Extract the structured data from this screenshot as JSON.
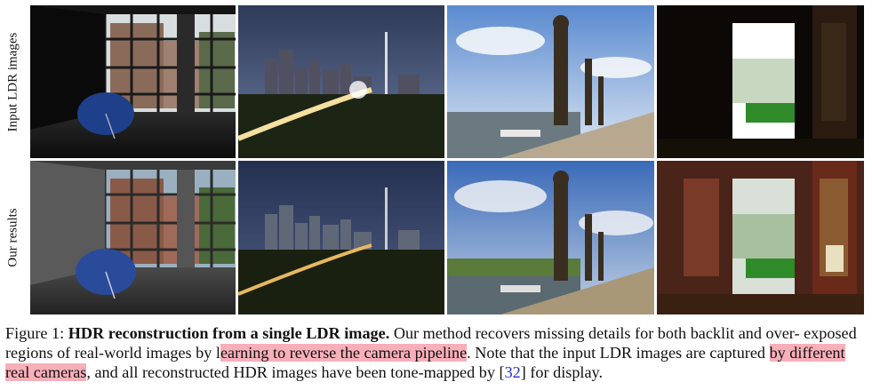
{
  "figure": {
    "row_labels": [
      "Input LDR images",
      "Our results"
    ]
  },
  "caption": {
    "prefix": "Figure 1: ",
    "bold": "HDR reconstruction from a single LDR image.",
    "line1_rest": " Our method recovers missing details for both backlit and over-",
    "line2_start": "exposed regions of real-world images",
    "line2_by": " by l",
    "highlight1": "earning to reverse the camera pipeline",
    "line2_end": ". Note that the input LDR images are captured",
    "highlight2": "by different real cameras",
    "line3_mid": ", and all reconstructed HDR images have been tone-mapped by [",
    "ref": "32",
    "line3_end": "] for display."
  }
}
